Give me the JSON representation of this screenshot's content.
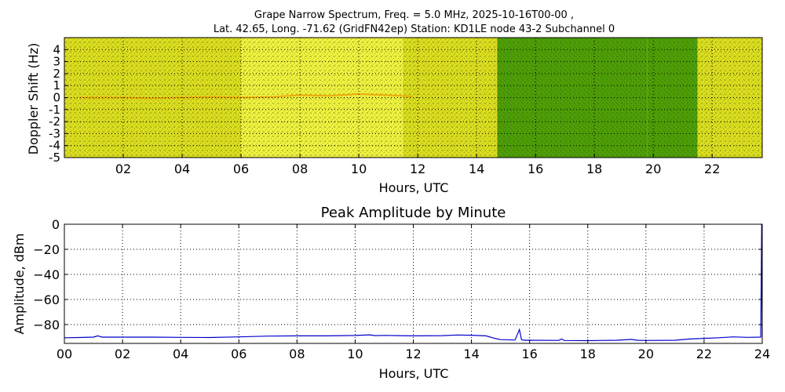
{
  "chart_data": [
    {
      "type": "heatmap",
      "title": "Grape Narrow Spectrum, Freq. = 5.0 MHz, 2025-10-16T00-00 ,",
      "subtitle": "Lat.  42.65, Long. -71.62 (GridFN42ep) Station: KD1LE node 43-2 Subchannel 0",
      "xlabel": "Hours, UTC",
      "ylabel": "Doppler Shift (Hz)",
      "xlim": [
        0,
        23.7
      ],
      "ylim": [
        -5,
        5
      ],
      "x_ticks": [
        2,
        4,
        6,
        8,
        10,
        12,
        14,
        16,
        18,
        20,
        22
      ],
      "x_tick_labels": [
        "02",
        "04",
        "06",
        "08",
        "10",
        "12",
        "14",
        "16",
        "18",
        "20",
        "22"
      ],
      "y_ticks": [
        4,
        3,
        2,
        1,
        0,
        -1,
        -2,
        -3,
        -4,
        -5
      ],
      "y_tick_labels": [
        "4",
        "3",
        "2",
        "1",
        "0",
        "-1",
        "-2",
        "-3",
        "-4",
        "-5"
      ],
      "grid": true,
      "colors": {
        "yellow": "#dcdc20",
        "light_yellow": "#f0f040",
        "green": "#4c9c08",
        "orange": "#f0a000"
      },
      "background_bands": [
        {
          "x0": 0,
          "x1": 6.0,
          "level": "yellow"
        },
        {
          "x0": 6.0,
          "x1": 11.5,
          "level": "light_yellow"
        },
        {
          "x0": 11.5,
          "x1": 14.7,
          "level": "yellow"
        },
        {
          "x0": 14.7,
          "x1": 19.8,
          "level": "green"
        },
        {
          "x0": 19.8,
          "x1": 21.5,
          "level": "green"
        },
        {
          "x0": 21.5,
          "x1": 23.7,
          "level": "yellow"
        }
      ],
      "doppler_trace": {
        "x": [
          0.5,
          2,
          3,
          4,
          5,
          6,
          7,
          8,
          9,
          10,
          11,
          11.8
        ],
        "y": [
          0,
          0,
          -0.05,
          0,
          0.05,
          0,
          0.05,
          0.2,
          0.15,
          0.3,
          0.2,
          0.1
        ]
      }
    },
    {
      "type": "line",
      "title": "Peak Amplitude by Minute",
      "xlabel": "Hours, UTC",
      "ylabel": "Amplitude, dBm",
      "xlim": [
        0,
        24
      ],
      "ylim": [
        -95,
        0
      ],
      "x_ticks": [
        0,
        2,
        4,
        6,
        8,
        10,
        12,
        14,
        16,
        18,
        20,
        22,
        24
      ],
      "x_tick_labels": [
        "00",
        "02",
        "04",
        "06",
        "08",
        "10",
        "12",
        "14",
        "16",
        "18",
        "20",
        "22",
        "24"
      ],
      "y_ticks": [
        0,
        -20,
        -40,
        -60,
        -80
      ],
      "y_tick_labels": [
        "0",
        "−20",
        "−40",
        "−60",
        "−80"
      ],
      "grid": true,
      "line_color": "#0000cc",
      "series": [
        {
          "x": [
            0,
            0.5,
            1,
            1.15,
            1.3,
            2,
            3,
            4,
            5,
            6,
            6.5,
            7,
            8,
            9,
            10,
            10.5,
            10.7,
            11,
            12,
            13,
            13.5,
            14,
            14.5,
            14.8,
            15,
            15.5,
            15.65,
            15.72,
            15.8,
            16,
            17,
            17.1,
            17.2,
            18,
            19,
            19.5,
            19.7,
            20,
            21,
            21.5,
            22,
            22.5,
            23,
            23.5,
            23.95,
            23.98,
            24
          ],
          "y": [
            -90.5,
            -90.3,
            -90,
            -89,
            -90,
            -90,
            -90,
            -90.2,
            -90.3,
            -89.8,
            -89.5,
            -89.2,
            -89,
            -89,
            -88.7,
            -88.2,
            -88.8,
            -88.6,
            -89,
            -88.8,
            -88.3,
            -88.5,
            -89,
            -91,
            -92,
            -92.3,
            -84,
            -92,
            -92.5,
            -92.5,
            -92.6,
            -91.5,
            -92.7,
            -92.8,
            -92.5,
            -91.8,
            -92.5,
            -92.7,
            -92.5,
            -91.5,
            -91,
            -90.5,
            -89.8,
            -90.2,
            -90,
            0,
            -90
          ]
        }
      ]
    }
  ]
}
